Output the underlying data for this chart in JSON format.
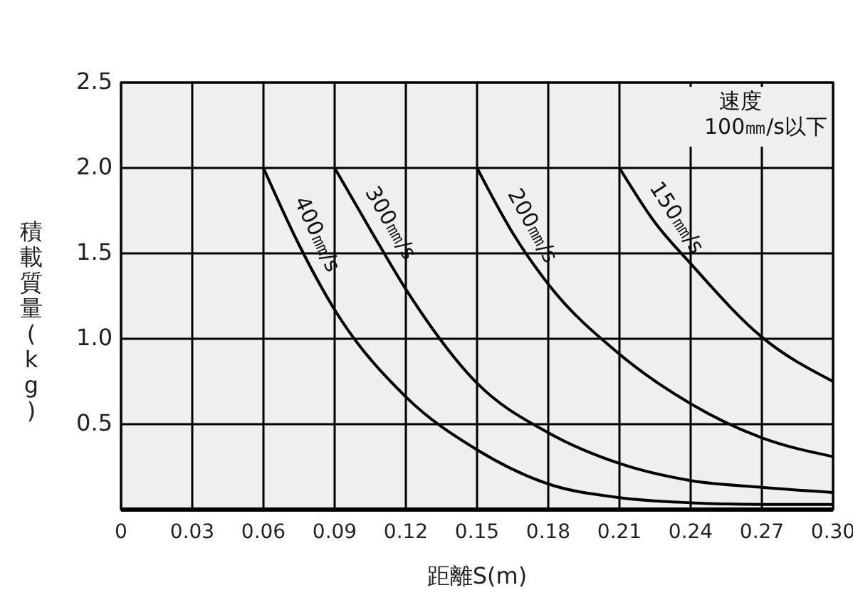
{
  "chart_data": {
    "type": "line",
    "xlabel": "距離S(m)",
    "ylabel": "積載質量(kg)",
    "annotations": [
      "速度\n100㎜/s以下"
    ],
    "xlim": [
      0,
      0.3
    ],
    "xticks": [
      {
        "value": 0,
        "label": "0"
      },
      0.03,
      0.06,
      0.09,
      0.12,
      0.15,
      0.18,
      0.21,
      0.24,
      0.27,
      {
        "value": 0.3,
        "label": "0.30"
      }
    ],
    "ylim": [
      0,
      2.5
    ],
    "yticks": [
      0.5,
      {
        "value": 1,
        "label": "1.0"
      },
      1.5,
      {
        "value": 2,
        "label": "2.0"
      },
      2.5
    ],
    "grid": true,
    "marker": "none",
    "line_style": "solid",
    "series": [
      {
        "name": "400㎜/s",
        "color": "#000000",
        "x": [
          0.06,
          0.075,
          0.09,
          0.12,
          0.15,
          0.18,
          0.21,
          0.24,
          0.27,
          0.3
        ],
        "values": [
          2.0,
          1.55,
          1.17,
          0.66,
          0.35,
          0.15,
          0.07,
          0.04,
          0.03,
          0.03
        ]
      },
      {
        "name": "300㎜/s",
        "color": "#000000",
        "x": [
          0.09,
          0.105,
          0.12,
          0.15,
          0.18,
          0.21,
          0.24,
          0.27,
          0.3
        ],
        "values": [
          2.0,
          1.64,
          1.29,
          0.74,
          0.45,
          0.27,
          0.17,
          0.13,
          0.1
        ]
      },
      {
        "name": "200㎜/s",
        "color": "#000000",
        "x": [
          0.15,
          0.165,
          0.18,
          0.21,
          0.24,
          0.27,
          0.3
        ],
        "values": [
          2.0,
          1.62,
          1.32,
          0.91,
          0.62,
          0.42,
          0.31
        ]
      },
      {
        "name": "150㎜/s",
        "color": "#000000",
        "x": [
          0.21,
          0.225,
          0.24,
          0.27,
          0.3
        ],
        "values": [
          2.0,
          1.68,
          1.44,
          1.01,
          0.75
        ]
      }
    ]
  }
}
